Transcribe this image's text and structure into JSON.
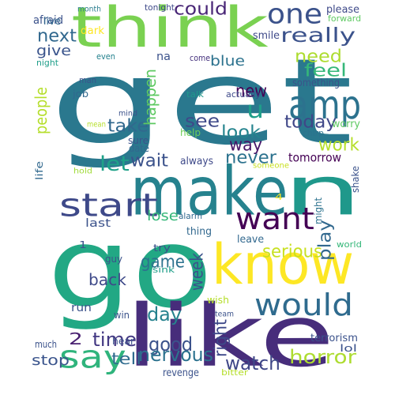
{
  "words": [
    {
      "id": "get",
      "text": "get",
      "color": "#2a788e"
    },
    {
      "id": "think",
      "text": "think",
      "color": "#7ad151"
    },
    {
      "id": "make",
      "text": "make",
      "color": "#26828e"
    },
    {
      "id": "n",
      "text": "n",
      "color": "#1f988b"
    },
    {
      "id": "go",
      "text": "go",
      "color": "#22a884"
    },
    {
      "id": "know",
      "text": "know",
      "color": "#fde725"
    },
    {
      "id": "like",
      "text": "like",
      "color": "#472d7b"
    },
    {
      "id": "one",
      "text": "one",
      "color": "#3b528b"
    },
    {
      "id": "amp",
      "text": "amp",
      "color": "#2c728e"
    },
    {
      "id": "start",
      "text": "start",
      "color": "#3e4989"
    },
    {
      "id": "want",
      "text": "want",
      "color": "#440154"
    },
    {
      "id": "would",
      "text": "would",
      "color": "#2f6b8e"
    },
    {
      "id": "say",
      "text": "say",
      "color": "#2fb47c"
    },
    {
      "id": "u",
      "text": "u",
      "color": "#1f9e89"
    },
    {
      "id": "really",
      "text": "really",
      "color": "#3b528b"
    },
    {
      "id": "could",
      "text": "could",
      "color": "#482576"
    },
    {
      "id": "need",
      "text": "need",
      "color": "#addc30"
    },
    {
      "id": "feel",
      "text": "feel",
      "color": "#35b779"
    },
    {
      "id": "today",
      "text": "today",
      "color": "#3f4788"
    },
    {
      "id": "work",
      "text": "work",
      "color": "#b5de2b"
    },
    {
      "id": "see",
      "text": "see",
      "color": "#3e4989"
    },
    {
      "id": "look",
      "text": "look",
      "color": "#25848e"
    },
    {
      "id": "way",
      "text": "way",
      "color": "#481769"
    },
    {
      "id": "let",
      "text": "let",
      "color": "#1fa188"
    },
    {
      "id": "never",
      "text": "never",
      "color": "#2c728e"
    },
    {
      "id": "wait",
      "text": "wait",
      "color": "#3b528b"
    },
    {
      "id": "take",
      "text": "take",
      "color": "#31688e"
    },
    {
      "id": "new",
      "text": "new",
      "color": "#440154"
    },
    {
      "id": "next",
      "text": "next",
      "color": "#31688e"
    },
    {
      "id": "give",
      "text": "give",
      "color": "#3a548c"
    },
    {
      "id": "blue",
      "text": "blue",
      "color": "#2c728e"
    },
    {
      "id": "happen",
      "text": "happen",
      "color": "#5ec962"
    },
    {
      "id": "people",
      "text": "people",
      "color": "#b5de2b"
    },
    {
      "id": "serious",
      "text": "serious",
      "color": "#c8e020"
    },
    {
      "id": "play",
      "text": "play",
      "color": "#31688e"
    },
    {
      "id": "game",
      "text": "game",
      "color": "#2c728e"
    },
    {
      "id": "week",
      "text": "week",
      "color": "#3b528b"
    },
    {
      "id": "back",
      "text": "back",
      "color": "#3e4989"
    },
    {
      "id": "day",
      "text": "day",
      "color": "#26828e"
    },
    {
      "id": "time",
      "text": "time",
      "color": "#443983"
    },
    {
      "id": "2",
      "text": "2",
      "color": "#481f70"
    },
    {
      "id": "good",
      "text": "good",
      "color": "#3b528b"
    },
    {
      "id": "nervous",
      "text": "nervous",
      "color": "#2c728e"
    },
    {
      "id": "right",
      "text": "right",
      "color": "#3e4989"
    },
    {
      "id": "watch",
      "text": "watch",
      "color": "#3f4788"
    },
    {
      "id": "horror",
      "text": "horror",
      "color": "#addc30"
    },
    {
      "id": "tell",
      "text": "tell",
      "color": "#2f6b8e"
    },
    {
      "id": "stop",
      "text": "stop",
      "color": "#3a548c"
    },
    {
      "id": "tomorrow",
      "text": "tomorrow",
      "color": "#440154"
    },
    {
      "id": "lose",
      "text": "lose",
      "color": "#35b779"
    },
    {
      "id": "last",
      "text": "last",
      "color": "#3b528b"
    },
    {
      "id": "afraid",
      "text": "afraid",
      "color": "#3b528b"
    },
    {
      "id": "month",
      "text": "month",
      "color": "#287c8e"
    },
    {
      "id": "tonight",
      "text": "tonight",
      "color": "#3e4989"
    },
    {
      "id": "please",
      "text": "please",
      "color": "#3e4989"
    },
    {
      "id": "forward",
      "text": "forward",
      "color": "#5ec962"
    },
    {
      "id": "live",
      "text": "live",
      "color": "#31688e"
    },
    {
      "id": "dark",
      "text": "dark",
      "color": "#fde725"
    },
    {
      "id": "smile",
      "text": "smile",
      "color": "#3e4989"
    },
    {
      "id": "night",
      "text": "night",
      "color": "#1f9e89"
    },
    {
      "id": "even",
      "text": "even",
      "color": "#26828e"
    },
    {
      "id": "na",
      "text": "na",
      "color": "#3b528b"
    },
    {
      "id": "come",
      "text": "come",
      "color": "#46327e"
    },
    {
      "id": "something",
      "text": "something",
      "color": "#3b528b"
    },
    {
      "id": "man",
      "text": "man",
      "color": "#3b528b"
    },
    {
      "id": "job",
      "text": "job",
      "color": "#31688e"
    },
    {
      "id": "talk",
      "text": "talk",
      "color": "#1f988b"
    },
    {
      "id": "actually",
      "text": "actually",
      "color": "#3e4989"
    },
    {
      "id": "mind",
      "text": "mind",
      "color": "#3b528b"
    },
    {
      "id": "mean",
      "text": "mean",
      "color": "#b5de2b"
    },
    {
      "id": "help",
      "text": "help",
      "color": "#6ece58"
    },
    {
      "id": "worry",
      "text": "worry",
      "color": "#5ec962"
    },
    {
      "id": "chirp",
      "text": "chirp",
      "color": "#2c728e"
    },
    {
      "id": "sure",
      "text": "sure",
      "color": "#3b528b"
    },
    {
      "id": "date",
      "text": "date",
      "color": "#31688e"
    },
    {
      "id": "life",
      "text": "life",
      "color": "#31688e"
    },
    {
      "id": "hold",
      "text": "hold",
      "color": "#a0da39"
    },
    {
      "id": "always",
      "text": "always",
      "color": "#3e4989"
    },
    {
      "id": "someone",
      "text": "someone",
      "color": "#c8e020"
    },
    {
      "id": "shake",
      "text": "shake",
      "color": "#3b528b"
    },
    {
      "id": "might",
      "text": "might",
      "color": "#2c728e"
    },
    {
      "id": "4",
      "text": "4",
      "color": "#fde725"
    },
    {
      "id": "alarm",
      "text": "alarm",
      "color": "#31688e"
    },
    {
      "id": "thing",
      "text": "thing",
      "color": "#31688e"
    },
    {
      "id": "leave",
      "text": "leave",
      "color": "#31688e"
    },
    {
      "id": "1",
      "text": "1",
      "color": "#3b528b"
    },
    {
      "id": "try",
      "text": "try",
      "color": "#3b528b"
    },
    {
      "id": "guy",
      "text": "guy",
      "color": "#3b528b"
    },
    {
      "id": "sink",
      "text": "sink",
      "color": "#1f9e89"
    },
    {
      "id": "world",
      "text": "world",
      "color": "#35b779"
    },
    {
      "id": "run",
      "text": "run",
      "color": "#3b528b"
    },
    {
      "id": "win",
      "text": "win",
      "color": "#3b528b"
    },
    {
      "id": "wish",
      "text": "wish",
      "color": "#b5de2b"
    },
    {
      "id": "team",
      "text": "team",
      "color": "#3b528b"
    },
    {
      "id": "much",
      "text": "much",
      "color": "#3b528b"
    },
    {
      "id": "hear",
      "text": "hear",
      "color": "#3b528b"
    },
    {
      "id": "revenge",
      "text": "revenge",
      "color": "#3b528b"
    },
    {
      "id": "bitter",
      "text": "bitter",
      "color": "#b5de2b"
    },
    {
      "id": "terrorism",
      "text": "terrorism",
      "color": "#3b528b"
    },
    {
      "id": "lol",
      "text": "lol",
      "color": "#3b528b"
    }
  ]
}
